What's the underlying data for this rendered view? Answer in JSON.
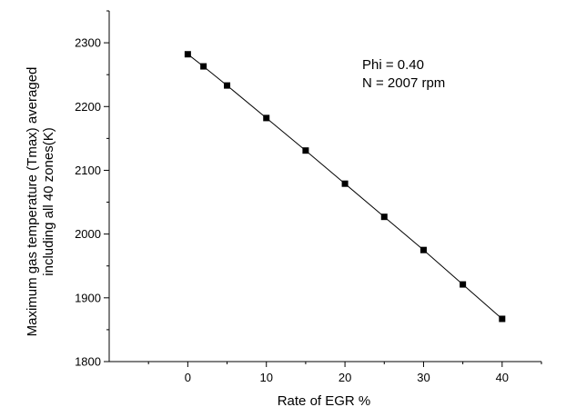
{
  "chart_data": {
    "type": "line",
    "title": "",
    "xlabel": "Rate of EGR %",
    "ylabel_lines": [
      "Maximum gas temperature (Tmax) averaged",
      "including all 40 zones(K)"
    ],
    "xlim": [
      -10,
      45
    ],
    "ylim": [
      1800,
      2350
    ],
    "x_ticks": [
      0,
      10,
      20,
      30,
      40
    ],
    "y_ticks": [
      1800,
      1900,
      2000,
      2100,
      2200,
      2300
    ],
    "grid": false,
    "marker": "square",
    "color": "#000000",
    "series": [
      {
        "x": [
          0,
          2,
          5,
          10,
          15,
          20,
          25,
          30,
          35,
          40
        ],
        "y": [
          2282,
          2263,
          2233,
          2182,
          2131,
          2079,
          2027,
          1975,
          1921,
          1867
        ]
      }
    ],
    "annotations": [
      "Phi = 0.40",
      "N = 2007 rpm"
    ]
  }
}
